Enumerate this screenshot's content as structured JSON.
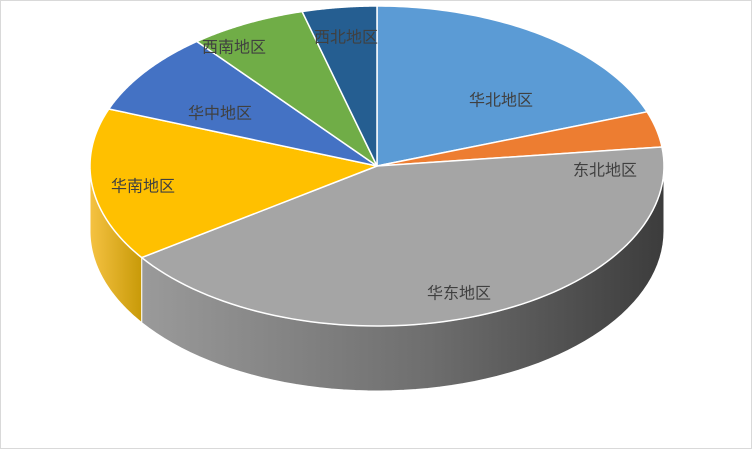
{
  "chart_data": {
    "type": "pie",
    "title": "",
    "categories": [
      "华北地区",
      "东北地区",
      "华东地区",
      "华南地区",
      "华中地区",
      "西南地区",
      "西北地区"
    ],
    "values": [
      19.5,
      3.6,
      42.2,
      15.5,
      8.4,
      6.6,
      4.2
    ],
    "colors": [
      "#5b9bd5",
      "#ed7d31",
      "#a5a5a5",
      "#ffc000",
      "#4472c4",
      "#70ad47",
      "#255e91"
    ],
    "legend": "none",
    "style": "3d-exploded-none"
  }
}
